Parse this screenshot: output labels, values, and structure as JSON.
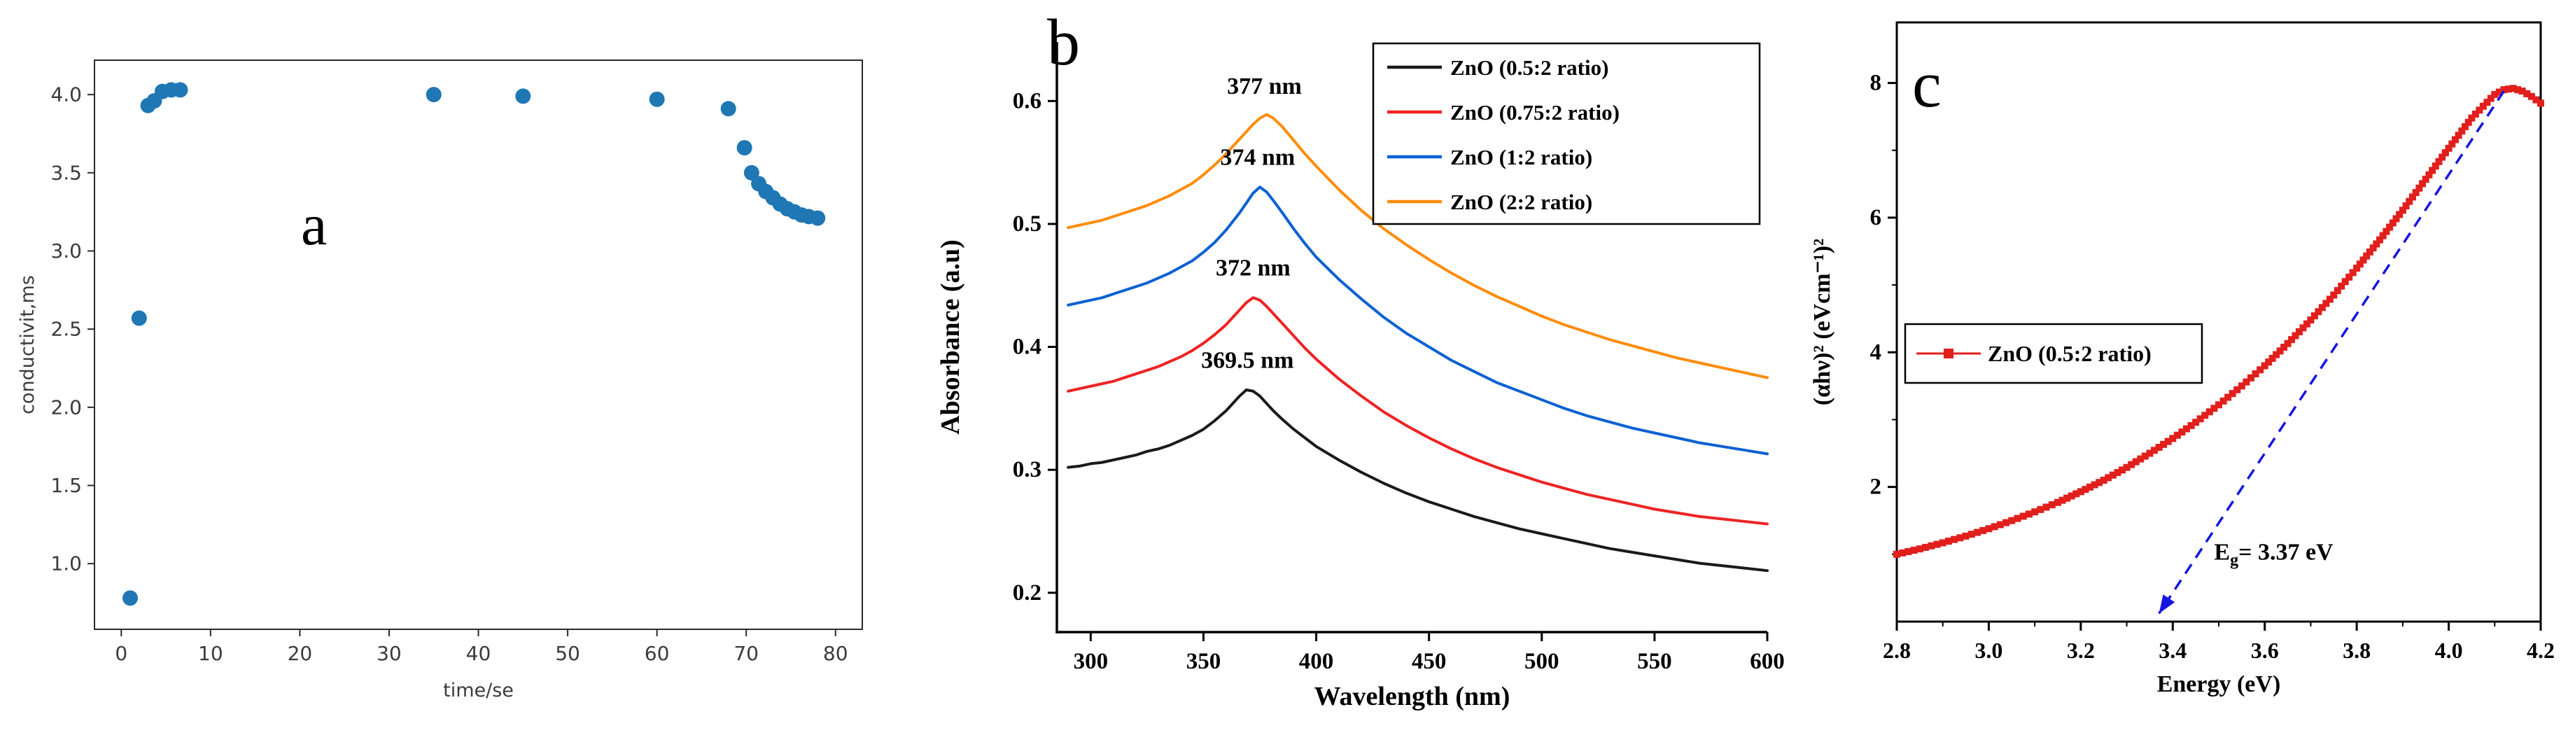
{
  "panels": {
    "a": {
      "letter": "a"
    },
    "b": {
      "letter": "b"
    },
    "c": {
      "letter": "c"
    }
  },
  "chart_data": [
    {
      "id": "a",
      "type": "scatter",
      "xlabel": "time/se",
      "ylabel": "conductivit,ms",
      "xlim": [
        -3,
        83
      ],
      "ylim": [
        0.58,
        4.22
      ],
      "xticks": [
        0,
        10,
        20,
        30,
        40,
        50,
        60,
        70,
        80
      ],
      "xtick_labels": [
        "0",
        "10",
        "20",
        "30",
        "40",
        "50",
        "60",
        "70",
        "80"
      ],
      "yticks": [
        1.0,
        1.5,
        2.0,
        2.5,
        3.0,
        3.5,
        4.0
      ],
      "ytick_labels": [
        "1.0",
        "1.5",
        "2.0",
        "2.5",
        "3.0",
        "3.5",
        "4.0"
      ],
      "marker_color": "#1f77b4",
      "points": [
        [
          1,
          0.78
        ],
        [
          2,
          2.57
        ],
        [
          3,
          3.93
        ],
        [
          3.7,
          3.96
        ],
        [
          4.6,
          4.02
        ],
        [
          5.6,
          4.03
        ],
        [
          6.6,
          4.03
        ],
        [
          35,
          4.0
        ],
        [
          45,
          3.99
        ],
        [
          60,
          3.97
        ],
        [
          68,
          3.91
        ],
        [
          69.8,
          3.66
        ],
        [
          70.6,
          3.5
        ],
        [
          71.4,
          3.43
        ],
        [
          72.2,
          3.38
        ],
        [
          73,
          3.34
        ],
        [
          73.8,
          3.3
        ],
        [
          74.6,
          3.27
        ],
        [
          75.4,
          3.25
        ],
        [
          76.2,
          3.23
        ],
        [
          77,
          3.22
        ],
        [
          78,
          3.21
        ]
      ]
    },
    {
      "id": "b",
      "type": "line",
      "xlabel": "Wavelength (nm)",
      "ylabel": "Absorbance (a.u)",
      "xlim": [
        285,
        600
      ],
      "ylim": [
        0.168,
        0.648
      ],
      "xticks": [
        300,
        350,
        400,
        450,
        500,
        550,
        600
      ],
      "xtick_labels": [
        "300",
        "350",
        "400",
        "450",
        "500",
        "550",
        "600"
      ],
      "yticks": [
        0.2,
        0.3,
        0.4,
        0.5,
        0.6
      ],
      "ytick_labels": [
        "0.2",
        "0.3",
        "0.4",
        "0.5",
        "0.6"
      ],
      "x": [
        290,
        295,
        300,
        305,
        310,
        315,
        320,
        325,
        330,
        335,
        340,
        345,
        350,
        355,
        360,
        363,
        366,
        369,
        372,
        375,
        378,
        381,
        385,
        390,
        395,
        400,
        410,
        420,
        430,
        440,
        450,
        460,
        470,
        480,
        490,
        500,
        510,
        520,
        530,
        540,
        550,
        560,
        570,
        580,
        590,
        600
      ],
      "series": [
        {
          "name": "ZnO (0.5:2 ratio)",
          "color": "#1a1a1a",
          "peak_nm": 369.5,
          "values": [
            0.302,
            0.303,
            0.305,
            0.306,
            0.308,
            0.31,
            0.312,
            0.315,
            0.317,
            0.32,
            0.324,
            0.328,
            0.333,
            0.34,
            0.348,
            0.354,
            0.36,
            0.365,
            0.364,
            0.36,
            0.354,
            0.348,
            0.341,
            0.333,
            0.326,
            0.319,
            0.308,
            0.298,
            0.289,
            0.281,
            0.274,
            0.268,
            0.262,
            0.257,
            0.252,
            0.248,
            0.244,
            0.24,
            0.236,
            0.233,
            0.23,
            0.227,
            0.224,
            0.222,
            0.22,
            0.218
          ]
        },
        {
          "name": "ZnO (0.75:2 ratio)",
          "color": "#ee2324",
          "peak_nm": 372,
          "values": [
            0.364,
            0.366,
            0.368,
            0.37,
            0.372,
            0.375,
            0.378,
            0.381,
            0.384,
            0.388,
            0.392,
            0.397,
            0.403,
            0.41,
            0.418,
            0.424,
            0.43,
            0.436,
            0.44,
            0.438,
            0.433,
            0.427,
            0.419,
            0.409,
            0.399,
            0.39,
            0.374,
            0.36,
            0.347,
            0.336,
            0.326,
            0.317,
            0.309,
            0.302,
            0.296,
            0.29,
            0.285,
            0.28,
            0.276,
            0.272,
            0.268,
            0.265,
            0.262,
            0.26,
            0.258,
            0.256
          ]
        },
        {
          "name": "ZnO (1:2 ratio)",
          "color": "#0b61d2",
          "peak_nm": 374,
          "values": [
            0.434,
            0.436,
            0.438,
            0.44,
            0.443,
            0.446,
            0.449,
            0.452,
            0.456,
            0.46,
            0.465,
            0.47,
            0.477,
            0.485,
            0.495,
            0.502,
            0.509,
            0.517,
            0.525,
            0.53,
            0.526,
            0.519,
            0.509,
            0.496,
            0.484,
            0.473,
            0.455,
            0.439,
            0.424,
            0.411,
            0.4,
            0.389,
            0.38,
            0.371,
            0.364,
            0.357,
            0.35,
            0.344,
            0.339,
            0.334,
            0.33,
            0.326,
            0.322,
            0.319,
            0.316,
            0.313
          ]
        },
        {
          "name": "ZnO (2:2 ratio)",
          "color": "#ff8c0a",
          "peak_nm": 377,
          "values": [
            0.497,
            0.499,
            0.501,
            0.503,
            0.506,
            0.509,
            0.512,
            0.515,
            0.519,
            0.523,
            0.528,
            0.533,
            0.54,
            0.548,
            0.557,
            0.563,
            0.569,
            0.575,
            0.581,
            0.586,
            0.589,
            0.586,
            0.579,
            0.568,
            0.557,
            0.547,
            0.528,
            0.511,
            0.496,
            0.483,
            0.471,
            0.46,
            0.45,
            0.441,
            0.433,
            0.425,
            0.418,
            0.412,
            0.406,
            0.401,
            0.396,
            0.391,
            0.387,
            0.383,
            0.379,
            0.375
          ]
        }
      ],
      "annotations": [
        {
          "text": "377 nm",
          "x": 377,
          "y": 0.606,
          "color": "#ff8c0a"
        },
        {
          "text": "374 nm",
          "x": 374,
          "y": 0.548,
          "color": "#0b61d2"
        },
        {
          "text": "372 nm",
          "x": 372,
          "y": 0.458,
          "color": "#ee2324"
        },
        {
          "text": "369.5 nm",
          "x": 369.5,
          "y": 0.383,
          "color": "#1a1a1a"
        }
      ],
      "legend": {
        "position": "top-right",
        "entries": [
          "ZnO (0.5:2 ratio)",
          "ZnO (0.75:2 ratio)",
          "ZnO (1:2 ratio)",
          "ZnO (2:2 ratio)"
        ]
      }
    },
    {
      "id": "c",
      "type": "line-scatter",
      "xlabel": "Energy (eV)",
      "ylabel": "(αhν)² (eVcm⁻¹)²",
      "xlim": [
        2.8,
        4.2
      ],
      "ylim": [
        0,
        8.9
      ],
      "xticks": [
        2.8,
        3.0,
        3.2,
        3.4,
        3.6,
        3.8,
        4.0,
        4.2
      ],
      "xtick_labels": [
        "2.8",
        "3.0",
        "3.2",
        "3.4",
        "3.6",
        "3.8",
        "4.0",
        "4.2"
      ],
      "yticks": [
        2,
        4,
        6,
        8
      ],
      "ytick_labels": [
        "2",
        "4",
        "6",
        "8"
      ],
      "xminor": [
        2.9,
        3.1,
        3.3,
        3.5,
        3.7,
        3.9,
        4.1
      ],
      "yminor": [
        1,
        3,
        5,
        7
      ],
      "series": [
        {
          "name": "ZnO (0.5:2 ratio)",
          "color": "#e11f1c",
          "marker": "square",
          "points": [
            [
              2.8,
              1.0
            ],
            [
              2.85,
              1.08
            ],
            [
              2.9,
              1.17
            ],
            [
              2.95,
              1.27
            ],
            [
              3.0,
              1.38
            ],
            [
              3.05,
              1.5
            ],
            [
              3.1,
              1.63
            ],
            [
              3.15,
              1.77
            ],
            [
              3.2,
              1.93
            ],
            [
              3.25,
              2.1
            ],
            [
              3.3,
              2.29
            ],
            [
              3.35,
              2.5
            ],
            [
              3.4,
              2.72
            ],
            [
              3.45,
              2.96
            ],
            [
              3.5,
              3.22
            ],
            [
              3.55,
              3.5
            ],
            [
              3.6,
              3.8
            ],
            [
              3.65,
              4.13
            ],
            [
              3.7,
              4.48
            ],
            [
              3.75,
              4.85
            ],
            [
              3.8,
              5.25
            ],
            [
              3.85,
              5.67
            ],
            [
              3.9,
              6.11
            ],
            [
              3.95,
              6.57
            ],
            [
              4.0,
              7.03
            ],
            [
              4.05,
              7.48
            ],
            [
              4.1,
              7.83
            ],
            [
              4.12,
              7.9
            ],
            [
              4.14,
              7.92
            ],
            [
              4.16,
              7.88
            ],
            [
              4.18,
              7.8
            ],
            [
              4.2,
              7.7
            ]
          ]
        }
      ],
      "tauc_line": {
        "color": "#1515e0",
        "style": "dashed",
        "from": [
          4.12,
          7.88
        ],
        "to": [
          3.37,
          0.12
        ]
      },
      "annotation": {
        "text_pre": "E",
        "text_sub": "g",
        "text_post": "= 3.37 eV",
        "x": 3.49,
        "y": 0.92,
        "color": "#1515e0"
      },
      "band_gap_ev": 3.37,
      "legend": {
        "position": "middle-left",
        "entries": [
          "ZnO (0.5:2 ratio)"
        ]
      }
    }
  ]
}
